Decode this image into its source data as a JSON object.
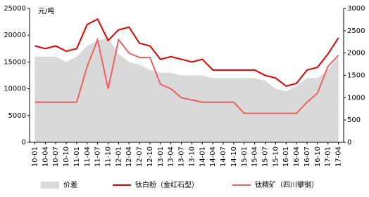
{
  "chart_data": {
    "type": "line",
    "unit_label": "元/吨",
    "categories": [
      "10-01",
      "10-04",
      "10-07",
      "10-10",
      "11-01",
      "11-04",
      "11-07",
      "11-10",
      "12-01",
      "12-04",
      "12-07",
      "12-10",
      "13-01",
      "13-04",
      "13-07",
      "13-10",
      "14-01",
      "14-04",
      "14-07",
      "14-10",
      "15-01",
      "15-04",
      "15-07",
      "15-10",
      "16-01",
      "16-04",
      "16-07",
      "16-10",
      "17-01",
      "17-04"
    ],
    "series": [
      {
        "name": "价差",
        "kind": "area",
        "color": "#d9d9d9",
        "values": [
          16000,
          16000,
          16000,
          15000,
          16000,
          18000,
          19000,
          19500,
          16500,
          15000,
          14500,
          13500,
          13000,
          13000,
          12500,
          12500,
          12500,
          12000,
          12000,
          12000,
          12000,
          12000,
          11500,
          10000,
          9500,
          10500,
          12000,
          12000,
          13500,
          16000
        ]
      },
      {
        "name": "钛白粉（金红石型）",
        "kind": "line",
        "color": "#e00000",
        "values": [
          18000,
          17500,
          18000,
          17000,
          17500,
          22000,
          23000,
          19000,
          21000,
          21500,
          18500,
          18000,
          15500,
          16000,
          15500,
          15000,
          15500,
          13500,
          13500,
          13500,
          13500,
          13500,
          12500,
          12000,
          10500,
          11000,
          13500,
          14000,
          16500,
          19500
        ]
      },
      {
        "name": "钛精矿（四川攀钢）",
        "kind": "line",
        "axis": "y2",
        "color": "#f06060",
        "values": [
          900,
          900,
          900,
          900,
          900,
          1700,
          2300,
          1200,
          2300,
          2000,
          1900,
          1900,
          1300,
          1200,
          1000,
          950,
          900,
          900,
          900,
          900,
          650,
          650,
          650,
          650,
          650,
          650,
          900,
          1100,
          1700,
          1950
        ]
      }
    ],
    "ylim": [
      0,
      25000
    ],
    "yticks": [
      0,
      5000,
      10000,
      15000,
      20000,
      25000
    ],
    "y2lim": [
      0,
      3000
    ],
    "y2ticks": [
      0,
      500,
      1000,
      1500,
      2000,
      2500,
      3000
    ]
  }
}
